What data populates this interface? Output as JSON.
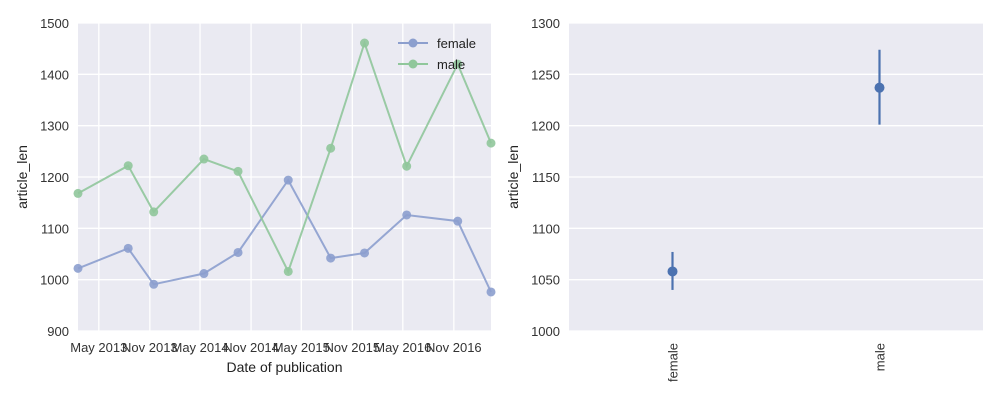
{
  "chart_data": [
    {
      "type": "line",
      "title": "",
      "xlabel": "Date of publication",
      "ylabel": "article_len",
      "ylim": [
        900,
        1500
      ],
      "y_ticks": [
        900,
        1000,
        1100,
        1200,
        1300,
        1400,
        1500
      ],
      "xlim": [
        "2013-02-15",
        "2017-03-15"
      ],
      "x_ticks": [
        {
          "date": "2013-05-01",
          "label": "May 2013"
        },
        {
          "date": "2013-11-01",
          "label": "Nov 2013"
        },
        {
          "date": "2014-05-01",
          "label": "May 2014"
        },
        {
          "date": "2014-11-01",
          "label": "Nov 2014"
        },
        {
          "date": "2015-05-01",
          "label": "May 2015"
        },
        {
          "date": "2015-11-01",
          "label": "Nov 2015"
        },
        {
          "date": "2016-05-01",
          "label": "May 2016"
        },
        {
          "date": "2016-11-01",
          "label": "Nov 2016"
        }
      ],
      "grid": true,
      "legend_position": "top-right",
      "x": [
        "2013-02-15",
        "2013-08-15",
        "2013-11-15",
        "2014-05-15",
        "2014-09-15",
        "2015-03-15",
        "2015-08-15",
        "2015-12-15",
        "2016-05-15",
        "2016-11-15",
        "2017-03-15"
      ],
      "series": [
        {
          "name": "female",
          "color": "#8c9fce",
          "values": [
            1022,
            1061,
            991,
            1012,
            1053,
            1194,
            1042,
            1052,
            1126,
            1114,
            976
          ]
        },
        {
          "name": "male",
          "color": "#90c79b",
          "values": [
            1168,
            1222,
            1132,
            1235,
            1211,
            1016,
            1256,
            1461,
            1221,
            1420,
            1266
          ]
        }
      ]
    },
    {
      "type": "scatter",
      "title": "",
      "xlabel": "",
      "ylabel": "article_len",
      "ylim": [
        1000,
        1300
      ],
      "y_ticks": [
        1000,
        1050,
        1100,
        1150,
        1200,
        1250,
        1300
      ],
      "grid": true,
      "color": "#4c72b0",
      "categories": [
        "female",
        "male"
      ],
      "values": [
        1058,
        1237
      ],
      "ci_low": [
        1040,
        1201
      ],
      "ci_high": [
        1077,
        1274
      ]
    }
  ]
}
